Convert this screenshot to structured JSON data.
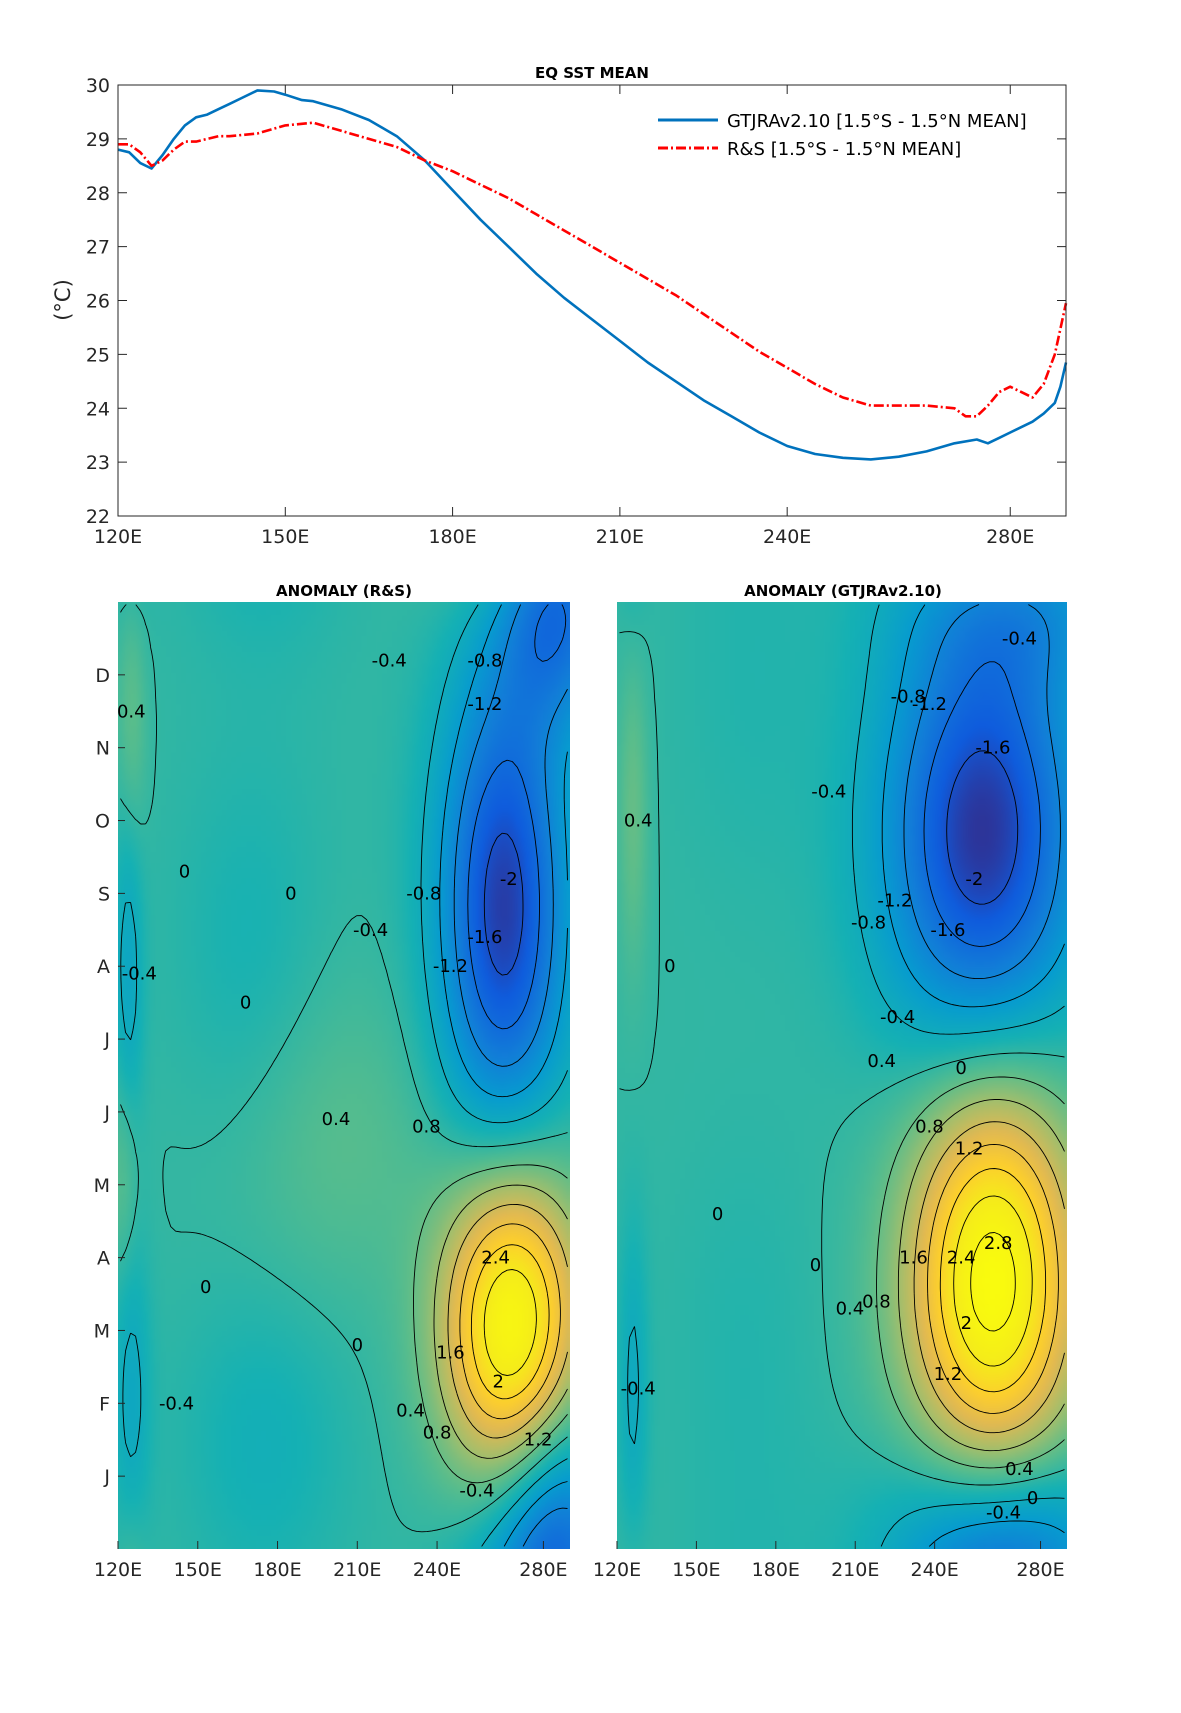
{
  "chart_data": [
    {
      "type": "line",
      "title": "EQ SST MEAN",
      "ylabel": "(°C)",
      "xlabel": "",
      "xlim": [
        120,
        290
      ],
      "ylim": [
        22,
        30
      ],
      "x_ticks": [
        120,
        150,
        180,
        210,
        240,
        280
      ],
      "x_tick_labels": [
        "120E",
        "150E",
        "180E",
        "210E",
        "240E",
        "280E"
      ],
      "y_ticks": [
        22,
        23,
        24,
        25,
        26,
        27,
        28,
        29,
        30
      ],
      "legend_position": "top-right",
      "series": [
        {
          "name": "GTJRAv2.10 [1.5°S - 1.5°N MEAN]",
          "color": "#0072bd",
          "style": "solid",
          "x": [
            120,
            122,
            124,
            126,
            128,
            130,
            132,
            134,
            136,
            138,
            140,
            142,
            145,
            148,
            150,
            153,
            155,
            160,
            165,
            170,
            175,
            180,
            185,
            190,
            195,
            200,
            205,
            210,
            215,
            220,
            225,
            230,
            235,
            240,
            245,
            250,
            255,
            260,
            265,
            270,
            274,
            276,
            278,
            280,
            282,
            284,
            286,
            288,
            289,
            290
          ],
          "y": [
            28.8,
            28.75,
            28.55,
            28.45,
            28.7,
            29.0,
            29.25,
            29.4,
            29.45,
            29.55,
            29.65,
            29.75,
            29.9,
            29.88,
            29.82,
            29.72,
            29.7,
            29.55,
            29.35,
            29.05,
            28.6,
            28.05,
            27.5,
            27.0,
            26.5,
            26.05,
            25.65,
            25.25,
            24.85,
            24.5,
            24.15,
            23.85,
            23.55,
            23.3,
            23.15,
            23.08,
            23.05,
            23.1,
            23.2,
            23.35,
            23.42,
            23.35,
            23.45,
            23.55,
            23.65,
            23.75,
            23.9,
            24.1,
            24.4,
            24.85
          ]
        },
        {
          "name": "R&S [1.5°S - 1.5°N MEAN]",
          "color": "#ff0000",
          "style": "dash-dot",
          "x": [
            120,
            122,
            124,
            126,
            128,
            130,
            132,
            134,
            136,
            138,
            140,
            145,
            150,
            155,
            160,
            165,
            170,
            175,
            180,
            185,
            190,
            195,
            200,
            205,
            210,
            215,
            220,
            225,
            230,
            235,
            240,
            245,
            250,
            255,
            260,
            265,
            270,
            272,
            274,
            276,
            278,
            280,
            282,
            284,
            286,
            288,
            290
          ],
          "y": [
            28.9,
            28.9,
            28.75,
            28.5,
            28.6,
            28.8,
            28.95,
            28.95,
            29.0,
            29.05,
            29.05,
            29.1,
            29.25,
            29.3,
            29.15,
            29.0,
            28.85,
            28.6,
            28.4,
            28.15,
            27.9,
            27.6,
            27.3,
            27.0,
            26.7,
            26.4,
            26.1,
            25.75,
            25.4,
            25.05,
            24.75,
            24.45,
            24.2,
            24.05,
            24.05,
            24.05,
            24.0,
            23.85,
            23.85,
            24.05,
            24.3,
            24.4,
            24.3,
            24.2,
            24.45,
            25.0,
            25.95
          ]
        }
      ]
    },
    {
      "type": "heatmap",
      "title": "ANOMALY (R&S)",
      "xlim": [
        120,
        290
      ],
      "ylim": [
        0,
        13
      ],
      "x_ticks": [
        120,
        150,
        180,
        210,
        240,
        280
      ],
      "x_tick_labels": [
        "120E",
        "150E",
        "180E",
        "210E",
        "240E",
        "280E"
      ],
      "y_tick_positions": [
        1,
        2,
        3,
        4,
        5,
        6,
        7,
        8,
        9,
        10,
        11,
        12
      ],
      "y_tick_labels": [
        "J",
        "F",
        "M",
        "A",
        "M",
        "J",
        "J",
        "A",
        "S",
        "O",
        "N",
        "D"
      ],
      "contour_levels": [
        -2,
        -1.6,
        -1.2,
        -0.8,
        -0.4,
        0,
        0.4,
        0.8,
        1.2,
        1.6,
        2,
        2.4
      ],
      "colormap": "parula",
      "components": [
        {
          "lon": 268,
          "t": 3.1,
          "amp": 2.95,
          "sx": 18,
          "st": 1.5
        },
        {
          "lon": 265,
          "t": 8.8,
          "amp": -2.2,
          "sx": 17,
          "st": 2.3
        },
        {
          "lon": 285,
          "t": 0.6,
          "amp": -1.0,
          "sx": 16,
          "st": 1.2
        },
        {
          "lon": 285,
          "t": 12.6,
          "amp": -0.8,
          "sx": 16,
          "st": 1.0
        },
        {
          "lon": 124,
          "t": 8.1,
          "amp": -0.55,
          "sx": 4,
          "st": 1.8
        },
        {
          "lon": 125,
          "t": 2.0,
          "amp": -0.5,
          "sx": 5,
          "st": 1.6
        },
        {
          "lon": 125,
          "t": 11.4,
          "amp": 0.45,
          "sx": 4,
          "st": 1.5
        },
        {
          "lon": 122,
          "t": 5.1,
          "amp": 0.4,
          "sx": 4,
          "st": 1.0
        },
        {
          "lon": 175,
          "t": 1.5,
          "amp": -0.3,
          "sx": 22,
          "st": 1.5
        },
        {
          "lon": 170,
          "t": 8.0,
          "amp": -0.25,
          "sx": 20,
          "st": 2.0
        },
        {
          "lon": 200,
          "t": 5.6,
          "amp": 0.3,
          "sx": 30,
          "st": 1.6
        }
      ],
      "contour_labels": [
        {
          "text": "2.4",
          "lon": 262,
          "t": 4.0
        },
        {
          "text": "2",
          "lon": 263,
          "t": 2.3
        },
        {
          "text": "1.6",
          "lon": 245,
          "t": 2.7
        },
        {
          "text": "1.2",
          "lon": 278,
          "t": 1.5
        },
        {
          "text": "0.8",
          "lon": 240,
          "t": 1.6
        },
        {
          "text": "0.4",
          "lon": 230,
          "t": 1.9
        },
        {
          "text": "0.8",
          "lon": 236,
          "t": 5.8
        },
        {
          "text": "0.4",
          "lon": 202,
          "t": 5.9
        },
        {
          "text": "-0.4",
          "lon": 255,
          "t": 0.8
        },
        {
          "text": "-2",
          "lon": 267,
          "t": 9.2
        },
        {
          "text": "-1.6",
          "lon": 258,
          "t": 8.4
        },
        {
          "text": "-1.2",
          "lon": 245,
          "t": 8.0
        },
        {
          "text": "-0.8",
          "lon": 235,
          "t": 9.0
        },
        {
          "text": "-0.4",
          "lon": 215,
          "t": 8.5
        },
        {
          "text": "-0.8",
          "lon": 258,
          "t": 12.2
        },
        {
          "text": "-1.2",
          "lon": 258,
          "t": 11.6
        },
        {
          "text": "-0.4",
          "lon": 222,
          "t": 12.2
        },
        {
          "text": "0.4",
          "lon": 125,
          "t": 11.5
        },
        {
          "text": "-0.4",
          "lon": 128,
          "t": 7.9
        },
        {
          "text": "-0.4",
          "lon": 142,
          "t": 2.0
        },
        {
          "text": "0",
          "lon": 153,
          "t": 3.6
        },
        {
          "text": "0",
          "lon": 185,
          "t": 9.0
        },
        {
          "text": "0",
          "lon": 210,
          "t": 2.8
        },
        {
          "text": "0",
          "lon": 145,
          "t": 9.3
        },
        {
          "text": "0",
          "lon": 168,
          "t": 7.5
        }
      ]
    },
    {
      "type": "heatmap",
      "title": "ANOMALY (GTJRAv2.10)",
      "xlim": [
        120,
        290
      ],
      "ylim": [
        0,
        13
      ],
      "x_ticks": [
        120,
        150,
        180,
        210,
        240,
        280
      ],
      "x_tick_labels": [
        "120E",
        "150E",
        "180E",
        "210E",
        "240E",
        "280E"
      ],
      "contour_levels": [
        -2,
        -1.6,
        -1.2,
        -0.8,
        -0.4,
        0,
        0.4,
        0.8,
        1.2,
        1.6,
        2,
        2.4,
        2.8
      ],
      "colormap": "parula",
      "components": [
        {
          "lon": 262,
          "t": 3.7,
          "amp": 3.05,
          "sx": 22,
          "st": 1.9
        },
        {
          "lon": 258,
          "t": 9.8,
          "amp": -2.3,
          "sx": 26,
          "st": 2.1
        },
        {
          "lon": 263,
          "t": 0.3,
          "amp": -0.55,
          "sx": 30,
          "st": 1.0
        },
        {
          "lon": 275,
          "t": 12.9,
          "amp": -0.5,
          "sx": 25,
          "st": 0.8
        },
        {
          "lon": 126,
          "t": 2.2,
          "amp": -0.45,
          "sx": 4,
          "st": 1.6
        },
        {
          "lon": 126,
          "t": 10.2,
          "amp": 0.4,
          "sx": 4,
          "st": 1.6
        },
        {
          "lon": 168,
          "t": 3.0,
          "amp": -0.12,
          "sx": 20,
          "st": 2.0
        },
        {
          "lon": 170,
          "t": 11.5,
          "amp": -0.12,
          "sx": 20,
          "st": 2.0
        }
      ],
      "contour_labels": [
        {
          "text": "2.8",
          "lon": 264,
          "t": 4.2
        },
        {
          "text": "2.4",
          "lon": 250,
          "t": 4.0
        },
        {
          "text": "2",
          "lon": 252,
          "t": 3.1
        },
        {
          "text": "1.6",
          "lon": 232,
          "t": 4.0
        },
        {
          "text": "1.2",
          "lon": 245,
          "t": 2.4
        },
        {
          "text": "1.2",
          "lon": 253,
          "t": 5.5
        },
        {
          "text": "0.8",
          "lon": 218,
          "t": 3.4
        },
        {
          "text": "0.8",
          "lon": 238,
          "t": 5.8
        },
        {
          "text": "0.4",
          "lon": 208,
          "t": 3.3
        },
        {
          "text": "0.4",
          "lon": 220,
          "t": 6.7
        },
        {
          "text": "0.4",
          "lon": 272,
          "t": 1.1
        },
        {
          "text": "0",
          "lon": 250,
          "t": 6.6
        },
        {
          "text": "0",
          "lon": 277,
          "t": 0.7
        },
        {
          "text": "0",
          "lon": 195,
          "t": 3.9
        },
        {
          "text": "-0.4",
          "lon": 266,
          "t": 0.5
        },
        {
          "text": "-0.4",
          "lon": 226,
          "t": 7.3
        },
        {
          "text": "-0.4",
          "lon": 200,
          "t": 10.4
        },
        {
          "text": "-0.4",
          "lon": 272,
          "t": 12.5
        },
        {
          "text": "-0.8",
          "lon": 215,
          "t": 8.6
        },
        {
          "text": "-0.8",
          "lon": 230,
          "t": 11.7
        },
        {
          "text": "-1.2",
          "lon": 225,
          "t": 8.9
        },
        {
          "text": "-1.2",
          "lon": 238,
          "t": 11.6
        },
        {
          "text": "-1.6",
          "lon": 245,
          "t": 8.5
        },
        {
          "text": "-1.6",
          "lon": 262,
          "t": 11.0
        },
        {
          "text": "-2",
          "lon": 255,
          "t": 9.2
        },
        {
          "text": "-0.4",
          "lon": 128,
          "t": 2.2
        },
        {
          "text": "0.4",
          "lon": 128,
          "t": 10.0
        },
        {
          "text": "0",
          "lon": 140,
          "t": 8.0
        },
        {
          "text": "0",
          "lon": 158,
          "t": 4.6
        }
      ]
    }
  ]
}
